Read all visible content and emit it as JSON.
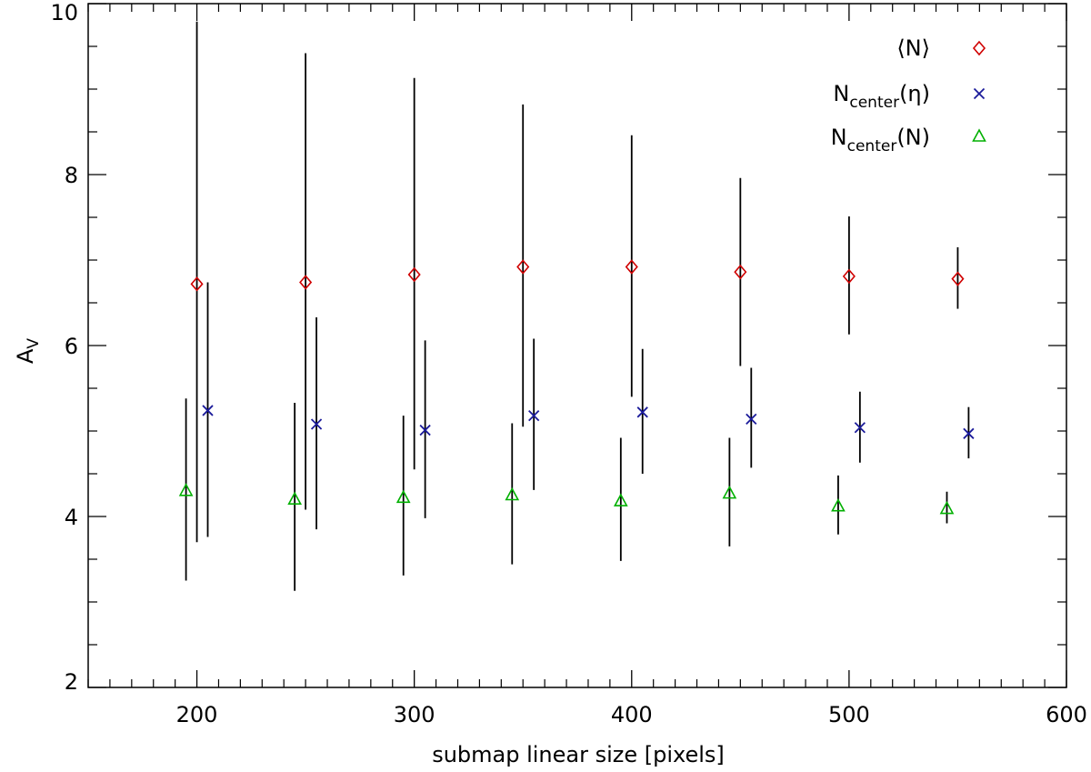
{
  "chart_data": {
    "type": "scatter",
    "title": "",
    "xlabel": "submap linear size [pixels]",
    "ylabel": "A",
    "ylabel_sub": "V",
    "xlim": [
      150,
      600
    ],
    "ylim": [
      2,
      10
    ],
    "x_ticks": [
      200,
      300,
      400,
      500,
      600
    ],
    "y_ticks": [
      2,
      4,
      6,
      8,
      10
    ],
    "x_tick_labels": [
      "200",
      "300",
      "400",
      "500",
      "600"
    ],
    "y_tick_labels": [
      "2",
      "4",
      "6",
      "8",
      "10"
    ],
    "x_minor_step": 10,
    "y_minor_step": 0.5,
    "legend_position": "top-right",
    "series": [
      {
        "name": "⟨N⟩",
        "legend_main": "⟨N⟩",
        "legend_sub": "",
        "legend_tail": "",
        "marker": "diamond",
        "color": "#d00000",
        "x_offset": 0,
        "x": [
          200,
          250,
          300,
          350,
          400,
          450,
          500,
          550
        ],
        "y": [
          6.72,
          6.74,
          6.83,
          6.92,
          6.92,
          6.86,
          6.81,
          6.78
        ],
        "y_low": [
          3.7,
          4.08,
          4.55,
          5.05,
          5.4,
          5.76,
          6.13,
          6.43
        ],
        "y_high": [
          9.79,
          9.42,
          9.13,
          8.82,
          8.46,
          7.96,
          7.51,
          7.15
        ]
      },
      {
        "name": "Ncenter(η)",
        "legend_main": "N",
        "legend_sub": "center",
        "legend_tail": "(η)",
        "marker": "x",
        "color": "#1a1a9a",
        "x_offset": 5,
        "x": [
          200,
          250,
          300,
          350,
          400,
          450,
          500,
          550
        ],
        "y": [
          5.24,
          5.08,
          5.01,
          5.18,
          5.22,
          5.14,
          5.04,
          4.97
        ],
        "y_low": [
          3.76,
          3.85,
          3.98,
          4.31,
          4.5,
          4.57,
          4.63,
          4.68
        ],
        "y_high": [
          6.74,
          6.33,
          6.06,
          6.08,
          5.96,
          5.74,
          5.46,
          5.28
        ]
      },
      {
        "name": "Ncenter(N)",
        "legend_main": "N",
        "legend_sub": "center",
        "legend_tail": "(N)",
        "marker": "triangle",
        "color": "#00b000",
        "x_offset": -5,
        "x": [
          200,
          250,
          300,
          350,
          400,
          450,
          500,
          550
        ],
        "y": [
          4.3,
          4.2,
          4.22,
          4.25,
          4.18,
          4.27,
          4.12,
          4.09
        ],
        "y_low": [
          3.25,
          3.13,
          3.31,
          3.44,
          3.48,
          3.65,
          3.79,
          3.92
        ],
        "y_high": [
          5.38,
          5.33,
          5.18,
          5.09,
          4.92,
          4.92,
          4.48,
          4.29
        ]
      }
    ]
  }
}
